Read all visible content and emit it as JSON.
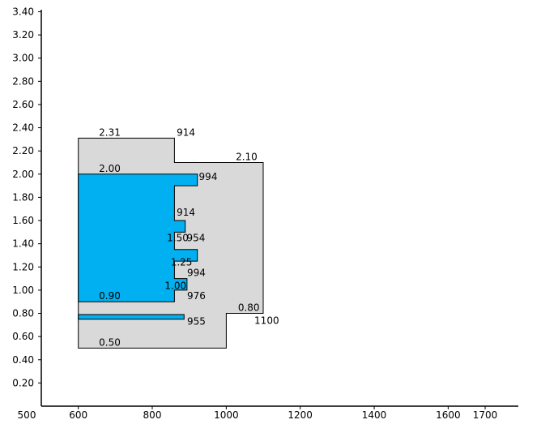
{
  "chart_data": {
    "type": "diagram",
    "x_axis": {
      "ticks": [
        {
          "value": 500,
          "label": "500"
        },
        {
          "value": 600,
          "label": "600"
        },
        {
          "value": 800,
          "label": "800"
        },
        {
          "value": 1000,
          "label": "1000"
        },
        {
          "value": 1200,
          "label": "1200"
        },
        {
          "value": 1400,
          "label": "1400"
        },
        {
          "value": 1600,
          "label": "1600"
        },
        {
          "value": 1700,
          "label": "1700"
        }
      ],
      "range": [
        500,
        1700
      ]
    },
    "y_axis": {
      "ticks": [
        {
          "value": 0.2,
          "label": "0.20"
        },
        {
          "value": 0.4,
          "label": "0.40"
        },
        {
          "value": 0.6,
          "label": "0.60"
        },
        {
          "value": 0.8,
          "label": "0.80"
        },
        {
          "value": 1.0,
          "label": "1.00"
        },
        {
          "value": 1.2,
          "label": "1.20"
        },
        {
          "value": 1.4,
          "label": "1.40"
        },
        {
          "value": 1.6,
          "label": "1.60"
        },
        {
          "value": 1.8,
          "label": "1.80"
        },
        {
          "value": 2.0,
          "label": "2.00"
        },
        {
          "value": 2.2,
          "label": "2.20"
        },
        {
          "value": 2.4,
          "label": "2.40"
        },
        {
          "value": 2.6,
          "label": "2.60"
        },
        {
          "value": 2.8,
          "label": "2.80"
        },
        {
          "value": 3.0,
          "label": "3.00"
        },
        {
          "value": 3.2,
          "label": "3.20"
        },
        {
          "value": 3.4,
          "label": "3.40"
        }
      ],
      "range": [
        0,
        3.4
      ]
    },
    "outer_shape": {
      "fill": "#d9d9d9",
      "points": [
        [
          600,
          0.5
        ],
        [
          1000,
          0.5
        ],
        [
          1000,
          0.8
        ],
        [
          1100,
          0.8
        ],
        [
          1100,
          2.1
        ],
        [
          860,
          2.1
        ],
        [
          860,
          2.31
        ],
        [
          600,
          2.31
        ]
      ]
    },
    "blue_shapes": [
      {
        "fill": "#00b0f0",
        "points": [
          [
            600,
            0.9
          ],
          [
            860,
            0.9
          ],
          [
            860,
            1.0
          ],
          [
            894,
            1.0
          ],
          [
            894,
            1.1
          ],
          [
            860,
            1.1
          ],
          [
            860,
            1.25
          ],
          [
            922,
            1.25
          ],
          [
            922,
            1.35
          ],
          [
            860,
            1.35
          ],
          [
            860,
            1.5
          ],
          [
            889,
            1.5
          ],
          [
            889,
            1.6
          ],
          [
            860,
            1.6
          ],
          [
            860,
            1.9
          ],
          [
            922,
            1.9
          ],
          [
            922,
            2.0
          ],
          [
            600,
            2.0
          ]
        ]
      },
      {
        "fill": "#00b0f0",
        "points": [
          [
            600,
            0.75
          ],
          [
            886,
            0.75
          ],
          [
            886,
            0.79
          ],
          [
            600,
            0.79
          ]
        ]
      }
    ],
    "labels": [
      {
        "text": "2.31",
        "x": 685,
        "y": 2.31,
        "anchor": "middle"
      },
      {
        "text": "914",
        "x": 866,
        "y": 2.31,
        "anchor": "start"
      },
      {
        "text": "2.10",
        "x": 1055,
        "y": 2.1,
        "anchor": "middle"
      },
      {
        "text": "2.00",
        "x": 685,
        "y": 2.0,
        "anchor": "middle"
      },
      {
        "text": "994",
        "x": 926,
        "y": 1.93,
        "anchor": "start"
      },
      {
        "text": "914",
        "x": 866,
        "y": 1.62,
        "anchor": "start"
      },
      {
        "text": "1.50",
        "x": 869,
        "y": 1.4,
        "anchor": "middle"
      },
      {
        "text": "954",
        "x": 893,
        "y": 1.4,
        "anchor": "start"
      },
      {
        "text": "1.25",
        "x": 879,
        "y": 1.19,
        "anchor": "middle"
      },
      {
        "text": "994",
        "x": 894,
        "y": 1.1,
        "anchor": "start"
      },
      {
        "text": "1.00",
        "x": 863,
        "y": 0.99,
        "anchor": "middle"
      },
      {
        "text": "0.90",
        "x": 685,
        "y": 0.9,
        "anchor": "middle"
      },
      {
        "text": "976",
        "x": 894,
        "y": 0.9,
        "anchor": "start"
      },
      {
        "text": "0.80",
        "x": 1061,
        "y": 0.8,
        "anchor": "middle"
      },
      {
        "text": "1100",
        "x": 1076,
        "y": 0.69,
        "anchor": "start"
      },
      {
        "text": "955",
        "x": 894,
        "y": 0.68,
        "anchor": "start"
      },
      {
        "text": "0.50",
        "x": 685,
        "y": 0.5,
        "anchor": "middle"
      }
    ]
  }
}
